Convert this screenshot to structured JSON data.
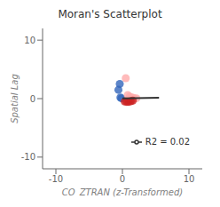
{
  "chart_data": {
    "type": "scatter",
    "title": "Moran's Scatterplot",
    "xlabel": "CO_ZTRAN (z-Transformed)",
    "ylabel": "Spatial Lag",
    "xlim": [
      -12,
      12
    ],
    "ylim": [
      -12,
      12
    ],
    "xticks": [
      -10,
      0,
      10
    ],
    "yticks": [
      -10,
      0,
      10
    ],
    "grid": false,
    "legend": "right",
    "series": [
      {
        "type": "scatter",
        "x": [
          -0.4,
          -0.6,
          -0.3,
          -0.15,
          0.5,
          0.8,
          1.1,
          1.4,
          1.7,
          2.1,
          0.35,
          0.65,
          0.95,
          1.25,
          1.55
        ],
        "values": [
          2.5,
          1.5,
          0.2,
          0.05,
          3.5,
          0.6,
          0.35,
          0.2,
          0.1,
          0.05,
          -0.5,
          -0.55,
          -0.55,
          -0.45,
          -0.35
        ],
        "colors": [
          "#3366BB",
          "#3366BB",
          "#3366BB",
          "#3366BB",
          "#FFAAAA",
          "#FFAAAA",
          "#FFAAAA",
          "#FFAAAA",
          "#FFAAAA",
          "#FFAAAA",
          "#CC2222",
          "#CC2222",
          "#CC2222",
          "#CC2222",
          "#CC2222"
        ]
      },
      {
        "type": "line",
        "name": "R2 = 0.02",
        "color": "#333333",
        "x": [
          0.0,
          5.5
        ],
        "values": [
          0.05,
          0.16
        ]
      }
    ]
  }
}
